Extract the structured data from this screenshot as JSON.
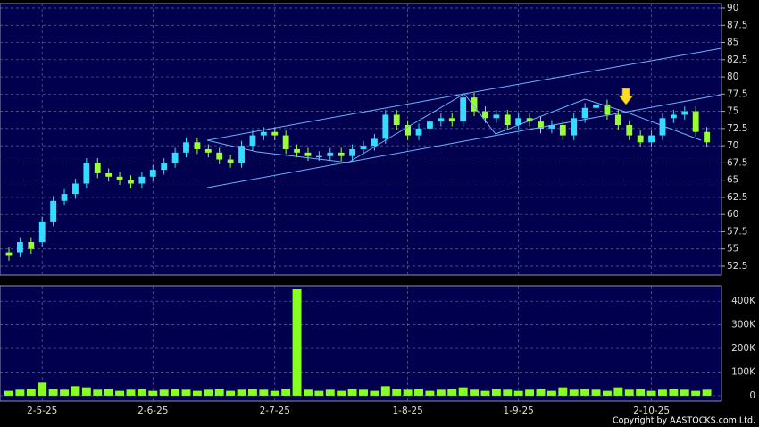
{
  "chart_data": {
    "type": "candlestick",
    "categories": [
      null,
      null,
      null,
      "2-5-25",
      null,
      null,
      null,
      null,
      null,
      null,
      null,
      null,
      null,
      "2-6-25",
      null,
      null,
      null,
      null,
      null,
      null,
      null,
      null,
      null,
      null,
      "2-7-25",
      null,
      null,
      null,
      null,
      null,
      null,
      null,
      null,
      null,
      null,
      null,
      "1-8-25",
      null,
      null,
      null,
      null,
      null,
      null,
      null,
      null,
      null,
      "1-9-25",
      null,
      null,
      null,
      null,
      null,
      null,
      null,
      null,
      null,
      null,
      null,
      "2-10-25",
      null,
      null,
      null,
      null,
      null
    ],
    "open": [
      54.5,
      54.5,
      56,
      56,
      59,
      62,
      63,
      64.5,
      67.5,
      66,
      65.5,
      65,
      64.5,
      65.5,
      66.5,
      67.5,
      69,
      70.5,
      69.5,
      69,
      68,
      67.5,
      70,
      71.5,
      72,
      71.5,
      69.5,
      69,
      68.5,
      68.5,
      69,
      68.5,
      69.5,
      70,
      71,
      74.5,
      73,
      71.5,
      72.5,
      73.5,
      74,
      73.5,
      77,
      75,
      74,
      74.5,
      73,
      74,
      73.5,
      72.5,
      73,
      71.5,
      74,
      75.5,
      76,
      74.5,
      73,
      71.5,
      70.5,
      71.5,
      74,
      74.5,
      75,
      72
    ],
    "high": [
      55.2,
      56.7,
      56.7,
      59.7,
      62.7,
      63.7,
      65.2,
      68.2,
      68.2,
      66.7,
      66.2,
      65.7,
      66.2,
      67.2,
      68.2,
      69.7,
      71.2,
      71.2,
      70.2,
      69.7,
      68.7,
      70.7,
      72.2,
      72.7,
      72.7,
      72.2,
      70.2,
      69.7,
      69.2,
      69.7,
      69.7,
      70.2,
      70.7,
      71.7,
      75.2,
      75.2,
      73.7,
      73.2,
      74.2,
      74.7,
      74.7,
      77.7,
      77.7,
      75.7,
      75.2,
      75.2,
      74.7,
      74.7,
      74.2,
      73.7,
      73.7,
      74.7,
      76.2,
      76.7,
      76.7,
      75.2,
      73.7,
      72.2,
      72.2,
      74.7,
      75.2,
      75.7,
      75.7,
      72.7
    ],
    "low": [
      53.3,
      53.8,
      54.3,
      55.3,
      58.3,
      61.3,
      62.3,
      63.8,
      65.3,
      64.8,
      64.3,
      63.8,
      63.8,
      64.8,
      65.8,
      66.8,
      68.3,
      68.8,
      68.3,
      67.3,
      66.8,
      66.8,
      69.3,
      70.8,
      70.8,
      68.8,
      68.3,
      67.8,
      67.8,
      67.8,
      67.8,
      67.8,
      68.8,
      69.3,
      70.3,
      72.3,
      70.8,
      70.8,
      71.8,
      72.8,
      72.8,
      72.8,
      74.3,
      73.3,
      73.3,
      72.3,
      72.3,
      72.8,
      71.8,
      71.8,
      70.8,
      70.8,
      73.3,
      74.8,
      73.8,
      72.3,
      70.8,
      69.8,
      69.8,
      70.8,
      73.3,
      73.8,
      71.3,
      69.8
    ],
    "close": [
      54,
      56,
      55,
      59,
      62,
      63,
      64.5,
      67.5,
      66,
      65.5,
      65,
      64.5,
      65.5,
      66.5,
      67.5,
      69,
      70.5,
      69.5,
      69,
      68,
      67.5,
      70,
      71.5,
      72,
      71.5,
      69.5,
      69,
      68.5,
      68.5,
      69,
      68.5,
      69.5,
      70,
      71,
      74.5,
      73,
      71.5,
      72.5,
      73.5,
      74,
      73.5,
      77,
      75,
      74,
      74.5,
      73,
      74,
      73.5,
      72.5,
      73,
      71.5,
      74,
      75.5,
      76,
      74.5,
      73,
      71.5,
      70.5,
      71.5,
      74,
      74.5,
      75,
      72,
      70.5
    ],
    "volume": [
      20000,
      25000,
      30000,
      55000,
      30000,
      25000,
      40000,
      35000,
      25000,
      30000,
      20000,
      25000,
      30000,
      20000,
      25000,
      30000,
      25000,
      20000,
      25000,
      30000,
      20000,
      25000,
      30000,
      25000,
      20000,
      30000,
      450000,
      25000,
      20000,
      25000,
      20000,
      30000,
      25000,
      20000,
      40000,
      30000,
      25000,
      30000,
      20000,
      25000,
      30000,
      35000,
      25000,
      20000,
      30000,
      25000,
      20000,
      25000,
      30000,
      20000,
      35000,
      25000,
      30000,
      25000,
      20000,
      35000,
      25000,
      30000,
      20000,
      25000,
      30000,
      25000,
      20000,
      25000
    ],
    "up_color": "#33ddff",
    "down_color": "#99ff33",
    "volume_color": "#88ff22",
    "ylim": [
      51.2,
      90.65
    ],
    "yticks": [
      52.5,
      55,
      57.5,
      60,
      62.5,
      65,
      67.5,
      70,
      72.5,
      75,
      77.5,
      80,
      82.5,
      85,
      87.5,
      90
    ],
    "volume_ylim": [
      -23000,
      465000
    ],
    "volume_ticks": [
      {
        "value": 0,
        "label": "0"
      },
      {
        "value": 100000,
        "label": "100K"
      },
      {
        "value": 200000,
        "label": "200K"
      },
      {
        "value": 300000,
        "label": "300K"
      },
      {
        "value": 400000,
        "label": "400K"
      }
    ],
    "grid": true,
    "copyright": "Copyright by AASTOCKS.com Ltd."
  }
}
